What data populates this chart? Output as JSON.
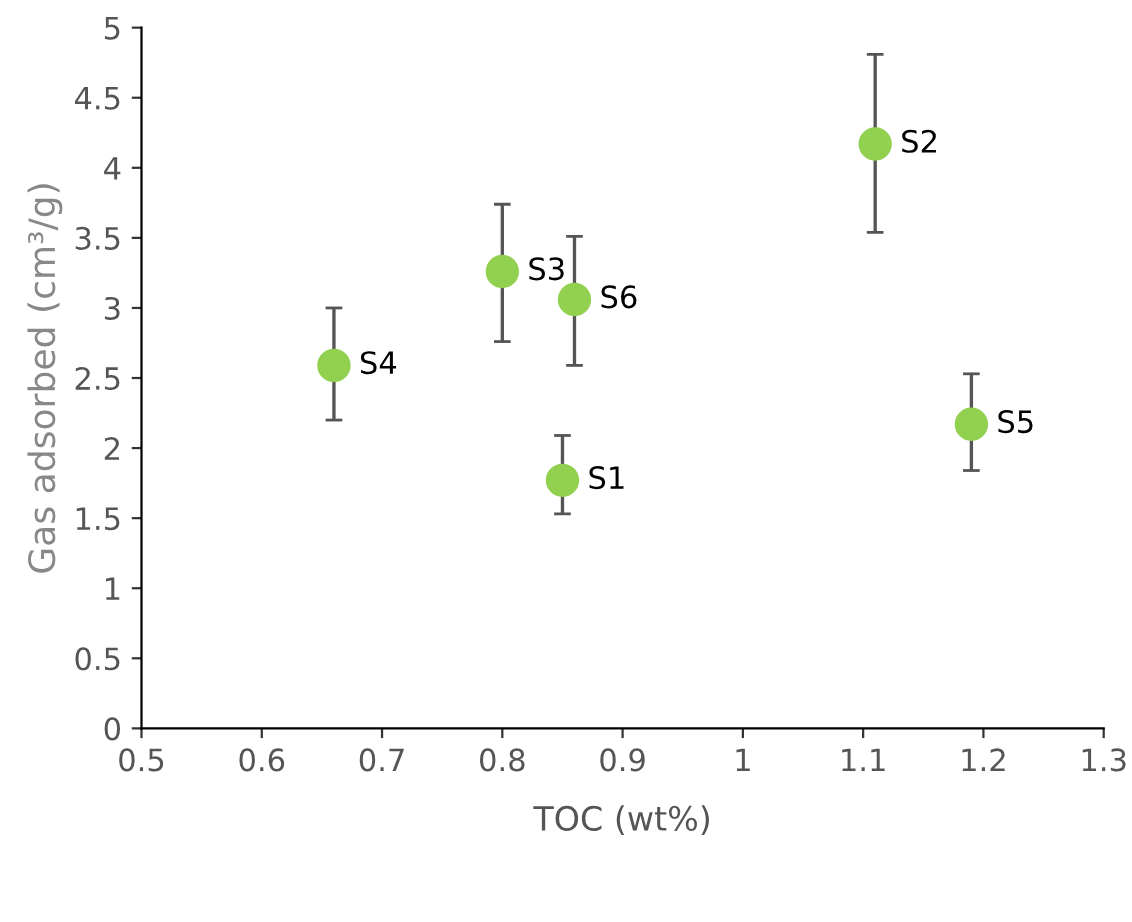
{
  "chart_data": {
    "type": "scatter",
    "xlabel": "TOC (wt%)",
    "ylabel": "Gas adsorbed (cm³/g)",
    "x": [
      0.85,
      1.11,
      0.8,
      0.66,
      1.19,
      0.86
    ],
    "series": [
      {
        "color": "#92d050",
        "values": [
          1.77,
          4.17,
          3.26,
          2.59,
          2.17,
          3.06
        ],
        "errors": [
          [
            1.53,
            2.09
          ],
          [
            3.54,
            4.81
          ],
          [
            2.76,
            3.74
          ],
          [
            2.2,
            3.0
          ],
          [
            1.84,
            2.53
          ],
          [
            2.59,
            3.51
          ]
        ]
      }
    ],
    "annotations": [
      {
        "text": "S1",
        "x": 0.85,
        "y": 1.77
      },
      {
        "text": "S2",
        "x": 1.11,
        "y": 4.17
      },
      {
        "text": "S3",
        "x": 0.8,
        "y": 3.26
      },
      {
        "text": "S4",
        "x": 0.66,
        "y": 2.59
      },
      {
        "text": "S5",
        "x": 1.19,
        "y": 2.17
      },
      {
        "text": "S6",
        "x": 0.86,
        "y": 3.06
      }
    ],
    "xlim": [
      0.5,
      1.3
    ],
    "xticks": [
      0.5,
      0.6,
      0.7,
      0.8,
      0.9,
      1,
      1.1,
      1.2,
      1.3
    ],
    "ylim": [
      0,
      5
    ],
    "yticks": [
      0,
      0.5,
      1,
      1.5,
      2,
      2.5,
      3,
      3.5,
      4,
      4.5,
      5
    ],
    "marker": "circle",
    "grid": false,
    "legend": false
  }
}
